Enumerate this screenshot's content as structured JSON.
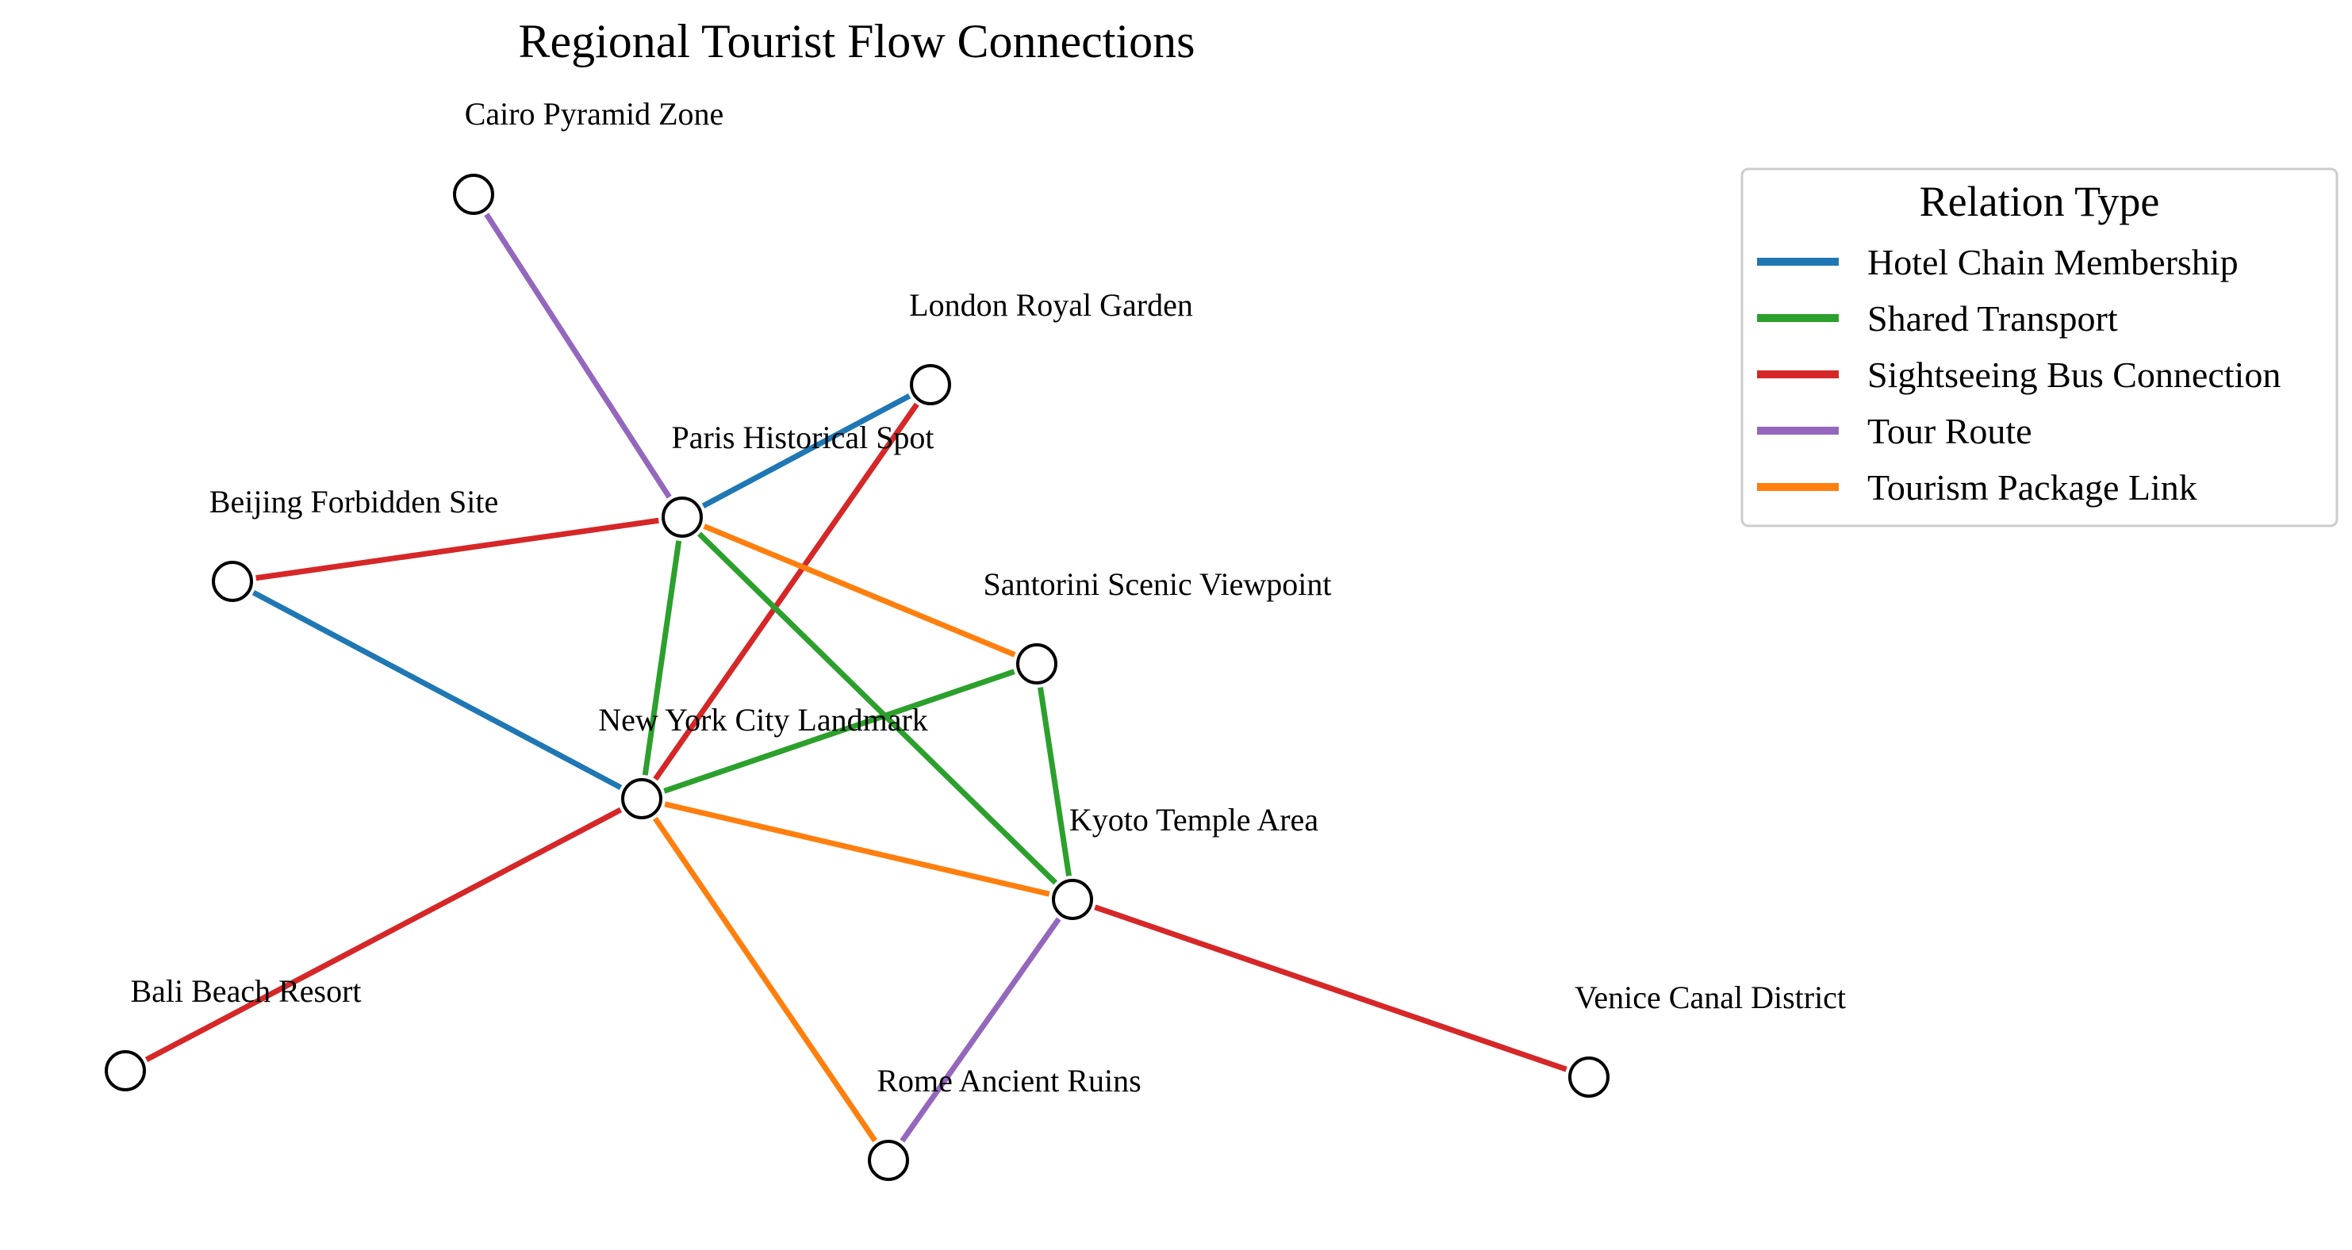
{
  "title": "Regional Tourist Flow Connections",
  "legend": {
    "title": "Relation Type",
    "items": [
      {
        "label": "Hotel Chain Membership",
        "color": "#1f77b4"
      },
      {
        "label": "Shared Transport",
        "color": "#2ca02c"
      },
      {
        "label": "Sightseeing Bus Connection",
        "color": "#d62728"
      },
      {
        "label": "Tour Route",
        "color": "#9467bd"
      },
      {
        "label": "Tourism Package Link",
        "color": "#ff7f0e"
      }
    ]
  },
  "nodes": [
    {
      "id": "cairo",
      "label": "Cairo Pyramid Zone"
    },
    {
      "id": "london",
      "label": "London Royal Garden"
    },
    {
      "id": "paris",
      "label": "Paris Historical Spot"
    },
    {
      "id": "beijing",
      "label": "Beijing Forbidden Site"
    },
    {
      "id": "santorini",
      "label": "Santorini Scenic Viewpoint"
    },
    {
      "id": "newyork",
      "label": "New York City Landmark"
    },
    {
      "id": "kyoto",
      "label": "Kyoto Temple Area"
    },
    {
      "id": "bali",
      "label": "Bali Beach Resort"
    },
    {
      "id": "venice",
      "label": "Venice Canal District"
    },
    {
      "id": "rome",
      "label": "Rome Ancient Ruins"
    }
  ],
  "edges": [
    {
      "from": "cairo",
      "to": "paris",
      "type": "Tour Route"
    },
    {
      "from": "paris",
      "to": "london",
      "type": "Hotel Chain Membership"
    },
    {
      "from": "newyork",
      "to": "london",
      "type": "Sightseeing Bus Connection"
    },
    {
      "from": "beijing",
      "to": "paris",
      "type": "Sightseeing Bus Connection"
    },
    {
      "from": "beijing",
      "to": "newyork",
      "type": "Hotel Chain Membership"
    },
    {
      "from": "paris",
      "to": "newyork",
      "type": "Shared Transport"
    },
    {
      "from": "paris",
      "to": "kyoto",
      "type": "Shared Transport"
    },
    {
      "from": "paris",
      "to": "santorini",
      "type": "Tourism Package Link"
    },
    {
      "from": "newyork",
      "to": "santorini",
      "type": "Shared Transport"
    },
    {
      "from": "santorini",
      "to": "kyoto",
      "type": "Shared Transport"
    },
    {
      "from": "newyork",
      "to": "kyoto",
      "type": "Tourism Package Link"
    },
    {
      "from": "newyork",
      "to": "rome",
      "type": "Tourism Package Link"
    },
    {
      "from": "newyork",
      "to": "bali",
      "type": "Sightseeing Bus Connection"
    },
    {
      "from": "kyoto",
      "to": "rome",
      "type": "Tour Route"
    },
    {
      "from": "kyoto",
      "to": "venice",
      "type": "Sightseeing Bus Connection"
    }
  ]
}
